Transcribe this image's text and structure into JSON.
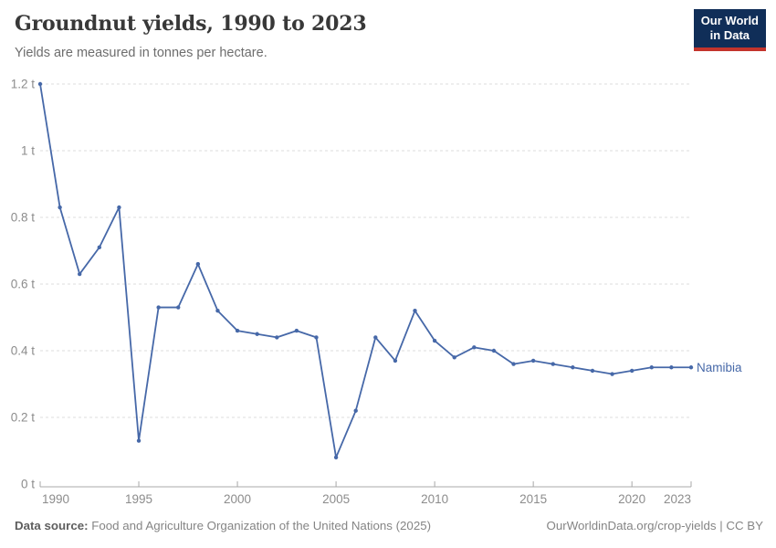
{
  "header": {
    "title": "Groundnut yields, 1990 to 2023",
    "subtitle": "Yields are measured in tonnes per hectare."
  },
  "logo": {
    "line1": "Our World",
    "line2": "in Data",
    "bg_color": "#102e58",
    "accent_color": "#c3342c"
  },
  "chart_data": {
    "type": "line",
    "title": "Groundnut yields, 1990 to 2023",
    "ylabel": "tonnes per hectare",
    "xlabel": "",
    "xlim": [
      1990,
      2023
    ],
    "ylim": [
      0,
      1.2
    ],
    "grid": "horizontal dashed",
    "legend_position": "end-of-line label",
    "x_ticks": [
      1990,
      1995,
      2000,
      2005,
      2010,
      2015,
      2020,
      2023
    ],
    "y_ticks": [
      {
        "value": 0,
        "label": "0 t"
      },
      {
        "value": 0.2,
        "label": "0.2 t"
      },
      {
        "value": 0.4,
        "label": "0.4 t"
      },
      {
        "value": 0.6,
        "label": "0.6 t"
      },
      {
        "value": 0.8,
        "label": "0.8 t"
      },
      {
        "value": 1,
        "label": "1 t"
      },
      {
        "value": 1.2,
        "label": "1.2 t"
      }
    ],
    "series": [
      {
        "name": "Namibia",
        "color": "#4668a8",
        "x": [
          1990,
          1991,
          1992,
          1993,
          1994,
          1995,
          1996,
          1997,
          1998,
          1999,
          2000,
          2001,
          2002,
          2003,
          2004,
          2005,
          2006,
          2007,
          2008,
          2009,
          2010,
          2011,
          2012,
          2013,
          2014,
          2015,
          2016,
          2017,
          2018,
          2019,
          2020,
          2021,
          2022,
          2023
        ],
        "values": [
          1.2,
          0.83,
          0.63,
          0.71,
          0.83,
          0.13,
          0.53,
          0.53,
          0.66,
          0.52,
          0.46,
          0.45,
          0.44,
          0.46,
          0.44,
          0.08,
          0.22,
          0.44,
          0.37,
          0.52,
          0.43,
          0.38,
          0.41,
          0.4,
          0.36,
          0.37,
          0.36,
          0.35,
          0.34,
          0.33,
          0.34,
          0.35,
          0.35,
          0.35
        ]
      }
    ]
  },
  "footer": {
    "source_label": "Data source:",
    "source_text": " Food and Agriculture Organization of the United Nations (2025)",
    "right_text": "OurWorldinData.org/crop-yields | CC BY"
  }
}
